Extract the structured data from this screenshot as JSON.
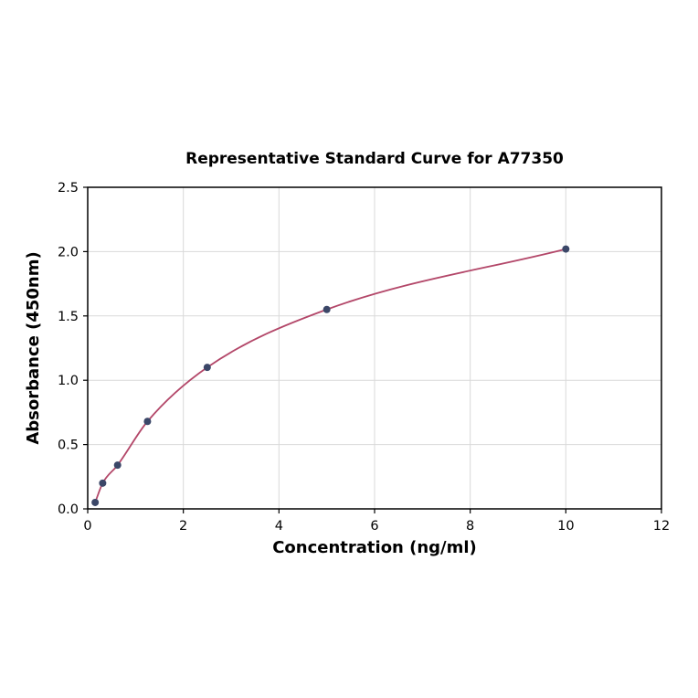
{
  "chart_data": {
    "type": "scatter",
    "title": "Representative Standard Curve for A77350",
    "xlabel": "Concentration (ng/ml)",
    "ylabel": "Absorbance (450nm)",
    "x": [
      0.156,
      0.313,
      0.625,
      1.25,
      2.5,
      5,
      10
    ],
    "y": [
      0.05,
      0.2,
      0.34,
      0.68,
      1.1,
      1.55,
      2.02
    ],
    "xlim": [
      0,
      12
    ],
    "ylim": [
      0,
      2.5
    ],
    "xticks": [
      0,
      2,
      4,
      6,
      8,
      10,
      12
    ],
    "xtick_labels": [
      "0",
      "2",
      "4",
      "6",
      "8",
      "10",
      "12"
    ],
    "yticks": [
      0.0,
      0.5,
      1.0,
      1.5,
      2.0,
      2.5
    ],
    "ytick_labels": [
      "0.0",
      "0.5",
      "1.0",
      "1.5",
      "2.0",
      "2.5"
    ],
    "grid": true,
    "legend": "none",
    "colors": {
      "point_color": "#3b4768",
      "curve_color": "#b34769",
      "grid_color": "#d9d9d9",
      "axis_color": "#000000",
      "background": "#ffffff"
    }
  }
}
